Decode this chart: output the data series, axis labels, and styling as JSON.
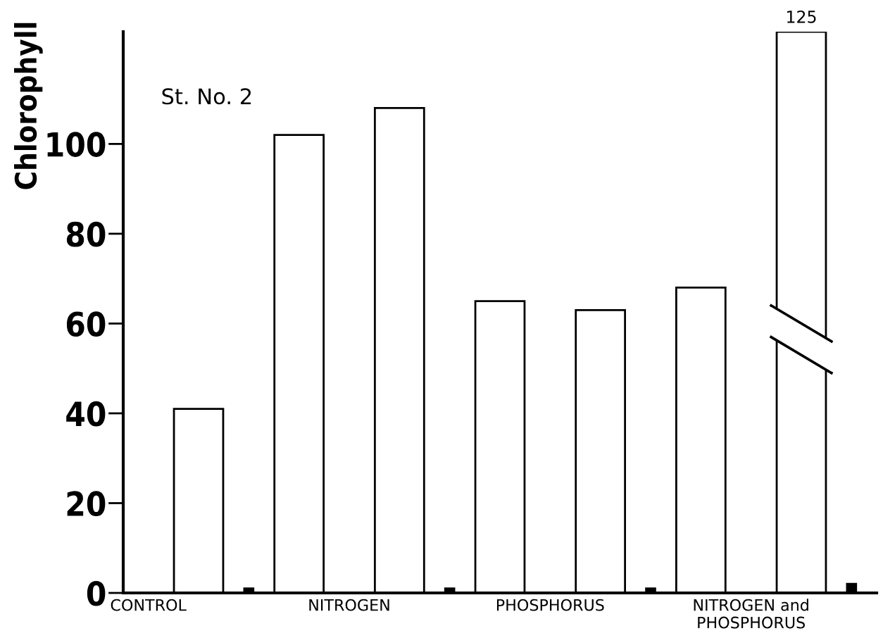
{
  "chart_data": {
    "type": "bar",
    "ylabel": "Chlorophyll",
    "categories": [
      "CONTROL",
      null,
      null,
      null,
      "NITROGEN",
      null,
      null,
      null,
      "PHOSPHORUS",
      null,
      null,
      null,
      "NITROGEN and\nPHOSPHORUS",
      null,
      null
    ],
    "values": [
      null,
      41,
      1,
      102,
      null,
      108,
      1,
      65,
      null,
      63,
      1,
      68,
      null,
      125,
      2
    ],
    "colors": [
      "#ffffff",
      "#ffffff",
      "#000000",
      "#ffffff",
      "#ffffff",
      "#ffffff",
      "#000000",
      "#ffffff",
      "#ffffff",
      "#ffffff",
      "#000000",
      "#ffffff",
      "#ffffff",
      "#ffffff",
      "#000000"
    ],
    "value_labels": [
      null,
      null,
      null,
      null,
      null,
      null,
      null,
      null,
      null,
      null,
      null,
      null,
      null,
      "125",
      null
    ],
    "ylim": [
      0,
      125
    ],
    "yticks": [
      0,
      20,
      40,
      60,
      80,
      100
    ],
    "annotations": [
      "St. No. 2"
    ],
    "grid": false,
    "legend": false
  }
}
